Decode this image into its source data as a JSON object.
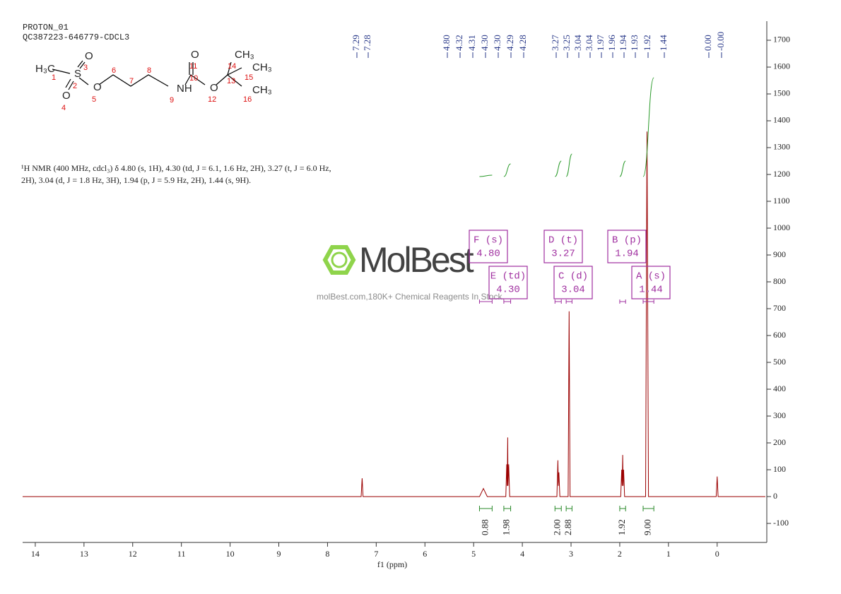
{
  "header": {
    "title": "PROTON_01",
    "sample": "QC387223-646779-CDCL3"
  },
  "structure": {
    "atoms": [
      "H₃C",
      "S",
      "O",
      "O",
      "O",
      "NH",
      "O",
      "O",
      "CH₃",
      "CH₃",
      "CH₃"
    ],
    "numbers": [
      "1",
      "2",
      "3",
      "4",
      "5",
      "6",
      "7",
      "8",
      "9",
      "10",
      "11",
      "12",
      "13",
      "14",
      "15",
      "16"
    ]
  },
  "description": [
    "¹H NMR (400 MHz, cdcl₃) δ 4.80 (s, 1H), 4.30 (td, J = 6.1, 1.6 Hz, 2H), 3.27 (t, J = 6.0 Hz,",
    "2H), 3.04 (d, J = 1.8 Hz, 3H), 1.94 (p, J = 5.9 Hz, 2H), 1.44 (s, 9H)."
  ],
  "watermark": {
    "brand": "MolBest",
    "tagline": "molBest.com,180K+ Chemical Reagents In Stock."
  },
  "peak_labels": [
    [
      "7.29",
      "7.28"
    ],
    [
      "4.80",
      "4.32",
      "4.31",
      "4.30",
      "4.30",
      "4.29",
      "4.28"
    ],
    [
      "3.27",
      "3.25",
      "3.04",
      "3.04",
      "1.97",
      "1.96",
      "1.94",
      "1.93",
      "1.92",
      "1.44"
    ],
    [
      "0.00",
      "-0.00"
    ]
  ],
  "multiplets": [
    {
      "name": "F (s)",
      "shift": "4.80",
      "integral": "0.88"
    },
    {
      "name": "E (td)",
      "shift": "4.30",
      "integral": "1.98"
    },
    {
      "name": "D (t)",
      "shift": "3.27",
      "integral": "2.00"
    },
    {
      "name": "C (d)",
      "shift": "3.04",
      "integral": "2.88"
    },
    {
      "name": "B (p)",
      "shift": "1.94",
      "integral": "1.92"
    },
    {
      "name": "A (s)",
      "shift": "1.44",
      "integral": "9.00"
    }
  ],
  "chart_data": {
    "type": "line",
    "x_label": "f1 (ppm)",
    "color": "#9b0000",
    "x": [
      14.26,
      7.31,
      7.29,
      7.27,
      4.88,
      4.8,
      4.72,
      4.34,
      4.32,
      4.31,
      4.3,
      4.295,
      4.28,
      4.26,
      3.29,
      3.27,
      3.26,
      3.25,
      3.23,
      3.06,
      3.04,
      3.02,
      1.98,
      1.96,
      1.95,
      1.94,
      1.93,
      1.92,
      1.9,
      1.47,
      1.44,
      1.41,
      0.02,
      0,
      -0.02,
      -0.99
    ],
    "values": [
      0,
      0,
      68,
      0,
      0,
      30,
      0,
      0,
      120,
      40,
      220,
      40,
      120,
      0,
      0,
      135,
      40,
      90,
      0,
      0,
      690,
      0,
      0,
      100,
      40,
      155,
      40,
      100,
      0,
      0,
      1360,
      0,
      0,
      75,
      0,
      0
    ],
    "xlim": [
      14.26,
      -0.99
    ],
    "ylim": [
      -163,
      1771
    ],
    "xticks": [
      14,
      13,
      12,
      11,
      10,
      9,
      8,
      7,
      6,
      5,
      4,
      3,
      2,
      1,
      0
    ],
    "yticks": [
      -100,
      0,
      100,
      200,
      300,
      400,
      500,
      600,
      700,
      800,
      900,
      1000,
      1100,
      1200,
      1300,
      1400,
      1500,
      1600,
      1700
    ]
  }
}
